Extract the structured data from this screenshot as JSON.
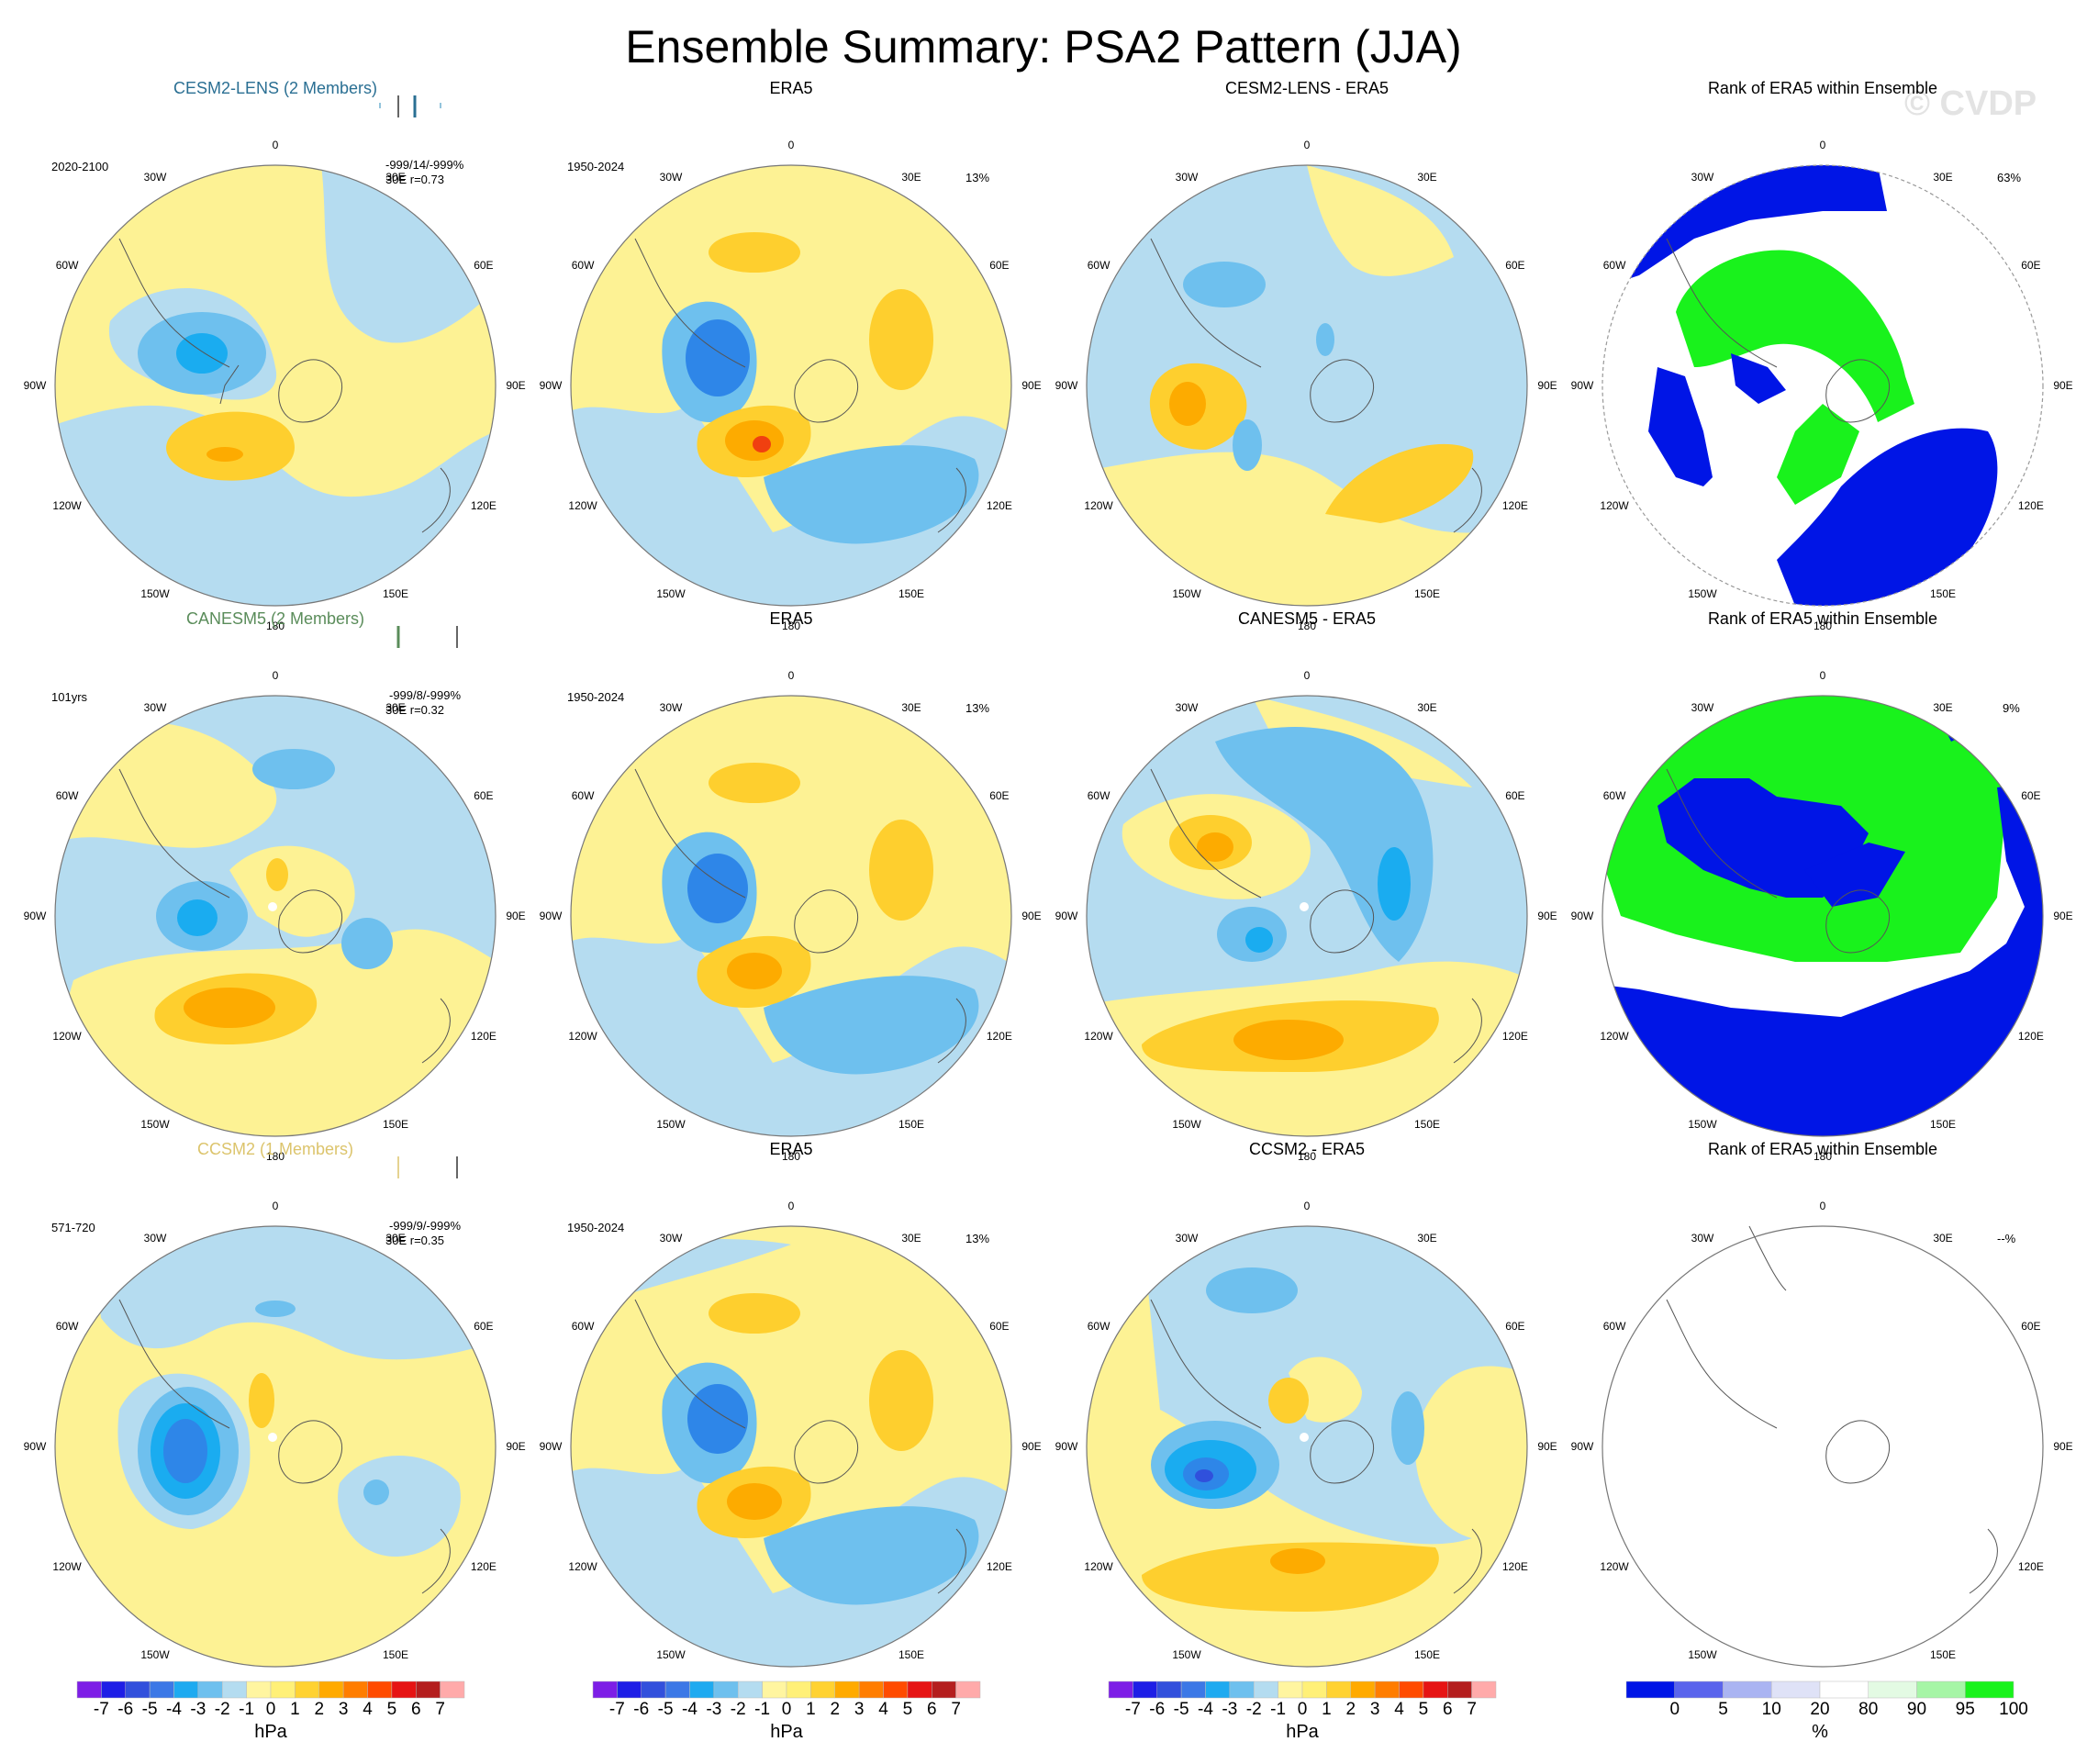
{
  "title": "Ensemble Summary: PSA2 Pattern (JJA)",
  "watermark": "© CVDP",
  "colors": {
    "blue_light": "#b5dcf0",
    "blue_2": "#6ec0ee",
    "blue_3": "#1aacf0",
    "blue_4": "#2e86e8",
    "blue_5": "#3050dc",
    "yellow": "#fdf294",
    "yellow_2": "#fecf2e",
    "orange_3": "#fdab00",
    "orange_4": "#fc7d00",
    "red_5": "#f04010",
    "rank_blue": "#0015e6",
    "rank_green": "#19f21c"
  },
  "lon_labels": [
    "0",
    "30E",
    "60E",
    "90E",
    "120E",
    "150E",
    "180",
    "150W",
    "120W",
    "90W",
    "60W",
    "30W"
  ],
  "rows": [
    {
      "model": {
        "title": "CESM2-LENS (2 Members)",
        "title_color": "#2a6f93",
        "period": "2020-2100",
        "stats": "-999/14/-999%",
        "corr": "30E  r=0.73"
      },
      "obs": {
        "title": "ERA5",
        "period": "1950-2024",
        "pct": "13%"
      },
      "diff": {
        "title": "CESM2-LENS - ERA5"
      },
      "rank": {
        "title": "Rank of ERA5 within Ensemble",
        "pct": "63%"
      }
    },
    {
      "model": {
        "title": "CANESM5 (2 Members)",
        "title_color": "#5a8c5a",
        "period": "101yrs",
        "stats": "-999/8/-999%",
        "corr": "30E  r=0.32"
      },
      "obs": {
        "title": "ERA5",
        "period": "1950-2024",
        "pct": "13%"
      },
      "diff": {
        "title": "CANESM5 - ERA5"
      },
      "rank": {
        "title": "Rank of ERA5 within Ensemble",
        "pct": "9%"
      }
    },
    {
      "model": {
        "title": "CCSM2 (1 Members)",
        "title_color": "#dcc46c",
        "period": "571-720",
        "stats": "-999/9/-999%",
        "corr": "30E  r=0.35"
      },
      "obs": {
        "title": "ERA5",
        "period": "1950-2024",
        "pct": "13%"
      },
      "diff": {
        "title": "CCSM2 - ERA5"
      },
      "rank": {
        "title": "Rank of ERA5 within Ensemble",
        "pct": "--%"
      }
    }
  ],
  "colorbars": [
    {
      "unit": "hPa",
      "ticks": [
        "-7",
        "-6",
        "-5",
        "-4",
        "-3",
        "-2",
        "-1",
        "0",
        "1",
        "2",
        "3",
        "4",
        "5",
        "6",
        "7"
      ],
      "colors": [
        "#7d1ee6",
        "#1e1ee6",
        "#3250dc",
        "#3c78e6",
        "#1eaaf0",
        "#6ec0ee",
        "#b4dcf0",
        "#fff5a0",
        "#fff078",
        "#ffd232",
        "#ffaa00",
        "#ff7d00",
        "#ff4b00",
        "#e61414",
        "#b41e1e",
        "#ffaaaa"
      ]
    },
    {
      "unit": "hPa",
      "ticks": [
        "-7",
        "-6",
        "-5",
        "-4",
        "-3",
        "-2",
        "-1",
        "0",
        "1",
        "2",
        "3",
        "4",
        "5",
        "6",
        "7"
      ],
      "colors": [
        "#7d1ee6",
        "#1e1ee6",
        "#3250dc",
        "#3c78e6",
        "#1eaaf0",
        "#6ec0ee",
        "#b4dcf0",
        "#fff5a0",
        "#fff078",
        "#ffd232",
        "#ffaa00",
        "#ff7d00",
        "#ff4b00",
        "#e61414",
        "#b41e1e",
        "#ffaaaa"
      ]
    },
    {
      "unit": "hPa",
      "ticks": [
        "-7",
        "-6",
        "-5",
        "-4",
        "-3",
        "-2",
        "-1",
        "0",
        "1",
        "2",
        "3",
        "4",
        "5",
        "6",
        "7"
      ],
      "colors": [
        "#7d1ee6",
        "#1e1ee6",
        "#3250dc",
        "#3c78e6",
        "#1eaaf0",
        "#6ec0ee",
        "#b4dcf0",
        "#fff5a0",
        "#fff078",
        "#ffd232",
        "#ffaa00",
        "#ff7d00",
        "#ff4b00",
        "#e61414",
        "#b41e1e",
        "#ffaaaa"
      ]
    },
    {
      "unit": "%",
      "ticks": [
        "0",
        "5",
        "10",
        "20",
        "80",
        "90",
        "95",
        "100"
      ],
      "colors": [
        "#0015e6",
        "#5a64ec",
        "#aab4f2",
        "#dfe2f7",
        "#ffffff",
        "#e3fae3",
        "#a6f5a6",
        "#19f21c"
      ]
    }
  ]
}
